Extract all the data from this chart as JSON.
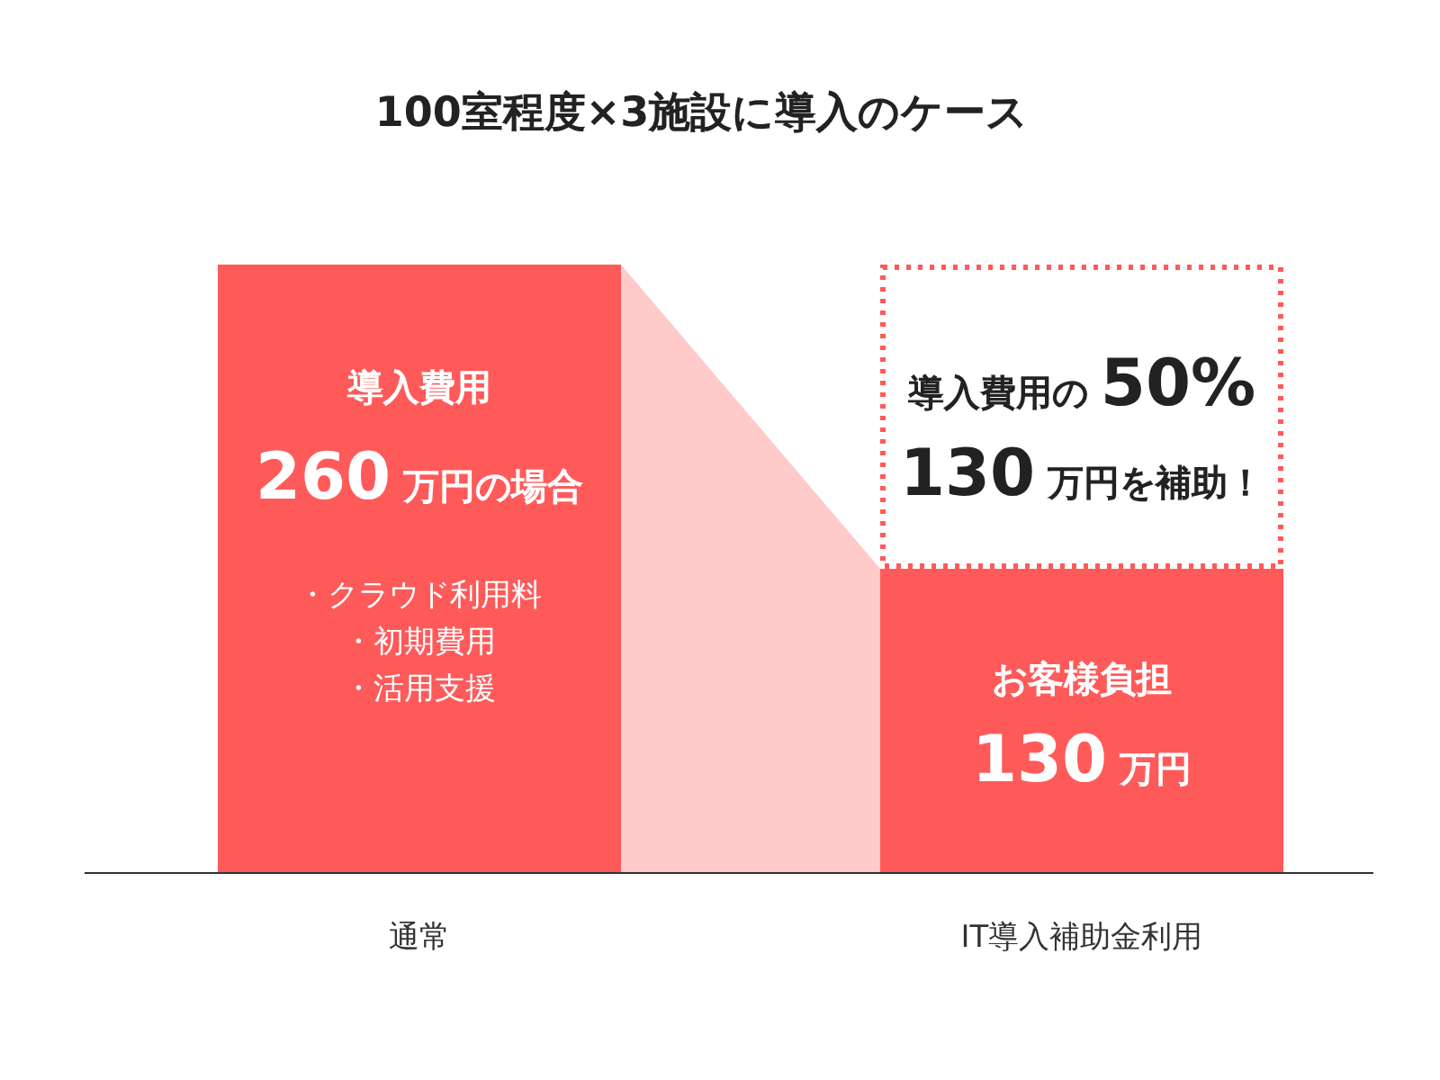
{
  "chart_data": {
    "type": "bar",
    "title": "100室程度×3施設に導入のケース",
    "categories": [
      "通常",
      "IT導入補助金利用"
    ],
    "stacked": true,
    "series": [
      {
        "color": "#ff5a5a",
        "values": [
          260,
          130
        ],
        "value_labels": [
          "260 万円の場合",
          "130 万円"
        ]
      },
      {
        "color": "#ffffff",
        "values": [
          null,
          130
        ],
        "line_style": "dotted",
        "value_labels": [
          null,
          "130 万円を補助！"
        ]
      }
    ],
    "annotations": [
      "導入費用",
      "・クラウド利用料",
      "・初期費用",
      "・活用支援",
      "お客様負担",
      "導入費用の 50%"
    ]
  }
}
